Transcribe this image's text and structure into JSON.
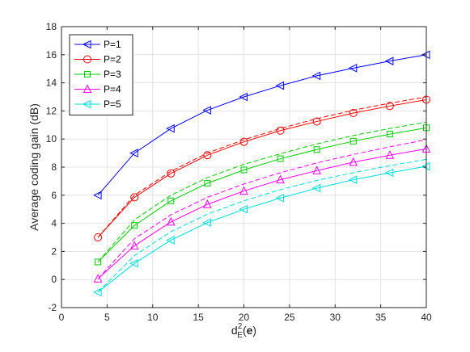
{
  "chart_data": {
    "type": "line",
    "title": "",
    "xlabel": "d_E^2(e)",
    "ylabel": "Average coding gain (dB)",
    "xlim": [
      0,
      40
    ],
    "ylim": [
      -2,
      18
    ],
    "xticks": [
      0,
      5,
      10,
      15,
      20,
      25,
      30,
      35,
      40
    ],
    "yticks": [
      -2,
      0,
      2,
      4,
      6,
      8,
      10,
      12,
      14,
      16,
      18
    ],
    "grid": true,
    "legend_position": "top-left",
    "x": [
      4,
      8,
      12,
      16,
      20,
      24,
      28,
      32,
      36,
      40
    ],
    "series": [
      {
        "name": "P=1",
        "color": "#0000FF",
        "marker": "triangle-left",
        "values": [
          6.0,
          9.0,
          10.75,
          12.05,
          13.0,
          13.8,
          14.5,
          15.05,
          15.55,
          16.0
        ],
        "dashed_values": null
      },
      {
        "name": "P=2",
        "color": "#FF0000",
        "marker": "circle",
        "values": [
          3.0,
          5.85,
          7.55,
          8.85,
          9.8,
          10.6,
          11.25,
          11.85,
          12.35,
          12.8
        ],
        "dashed_values": [
          3.0,
          6.0,
          7.7,
          9.0,
          9.95,
          10.75,
          11.45,
          12.05,
          12.55,
          13.0
        ]
      },
      {
        "name": "P=3",
        "color": "#00CC00",
        "marker": "square",
        "values": [
          1.25,
          3.85,
          5.6,
          6.85,
          7.8,
          8.6,
          9.25,
          9.85,
          10.35,
          10.8
        ],
        "dashed_values": [
          1.25,
          4.25,
          6.0,
          7.25,
          8.2,
          8.95,
          9.65,
          10.25,
          10.75,
          11.2
        ]
      },
      {
        "name": "P=4",
        "color": "#FF00FF",
        "marker": "triangle-up",
        "values": [
          0.05,
          2.4,
          4.1,
          5.35,
          6.3,
          7.1,
          7.75,
          8.35,
          8.85,
          9.3
        ],
        "dashed_values": [
          0.05,
          2.9,
          4.6,
          5.85,
          6.8,
          7.6,
          8.3,
          8.9,
          9.45,
          9.95
        ]
      },
      {
        "name": "P=5",
        "color": "#00DDDD",
        "marker": "triangle-left",
        "values": [
          -0.9,
          1.15,
          2.8,
          4.05,
          5.0,
          5.8,
          6.5,
          7.1,
          7.6,
          8.05
        ],
        "dashed_values": [
          -0.9,
          1.7,
          3.4,
          4.65,
          5.6,
          6.4,
          7.05,
          7.6,
          8.1,
          8.55
        ]
      }
    ]
  }
}
